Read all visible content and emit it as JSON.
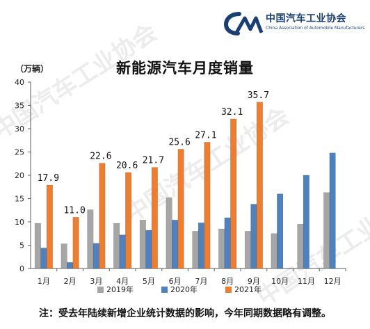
{
  "logo": {
    "name_cn": "中国汽车工业协会",
    "name_en": "China Association of Automobile Manufacturers",
    "mark_text": "CAAM"
  },
  "watermarks": [
    "中国汽车工业协会",
    "中国汽车工业协会",
    "中国汽车工业协会"
  ],
  "footnote": "注：受去年陆续新增企业统计数据的影响，今年同期数据略有调整。",
  "colors": {
    "s2019": "#a6a6a6",
    "s2020": "#4f81bd",
    "s2021": "#ed7d31"
  },
  "chart_data": {
    "type": "bar",
    "title": "新能源汽车月度销量",
    "ylabel": "（万辆）",
    "ylim": [
      0,
      40
    ],
    "yticks": [
      0,
      5,
      10,
      15,
      20,
      25,
      30,
      35,
      40
    ],
    "grid": false,
    "legend_position": "bottom",
    "categories": [
      "1月",
      "2月",
      "3月",
      "4月",
      "5月",
      "6月",
      "7月",
      "8月",
      "9月",
      "10月",
      "11月",
      "12月"
    ],
    "series": [
      {
        "name": "2019年",
        "values": [
          9.7,
          5.3,
          12.6,
          9.7,
          10.4,
          15.2,
          8.0,
          8.5,
          8.0,
          7.5,
          9.5,
          16.3
        ]
      },
      {
        "name": "2020年",
        "values": [
          4.4,
          1.3,
          5.4,
          7.2,
          8.2,
          10.4,
          9.8,
          10.9,
          13.8,
          16.0,
          20.0,
          24.8
        ]
      },
      {
        "name": "2021年",
        "values": [
          17.9,
          11.0,
          22.6,
          20.6,
          21.7,
          25.6,
          27.1,
          32.1,
          35.7,
          null,
          null,
          null
        ]
      }
    ],
    "data_labels": {
      "series": "2021年",
      "texts": [
        "17.9",
        "11.0",
        "22.6",
        "20.6",
        "21.7",
        "25.6",
        "27.1",
        "32.1",
        "35.7"
      ]
    }
  }
}
